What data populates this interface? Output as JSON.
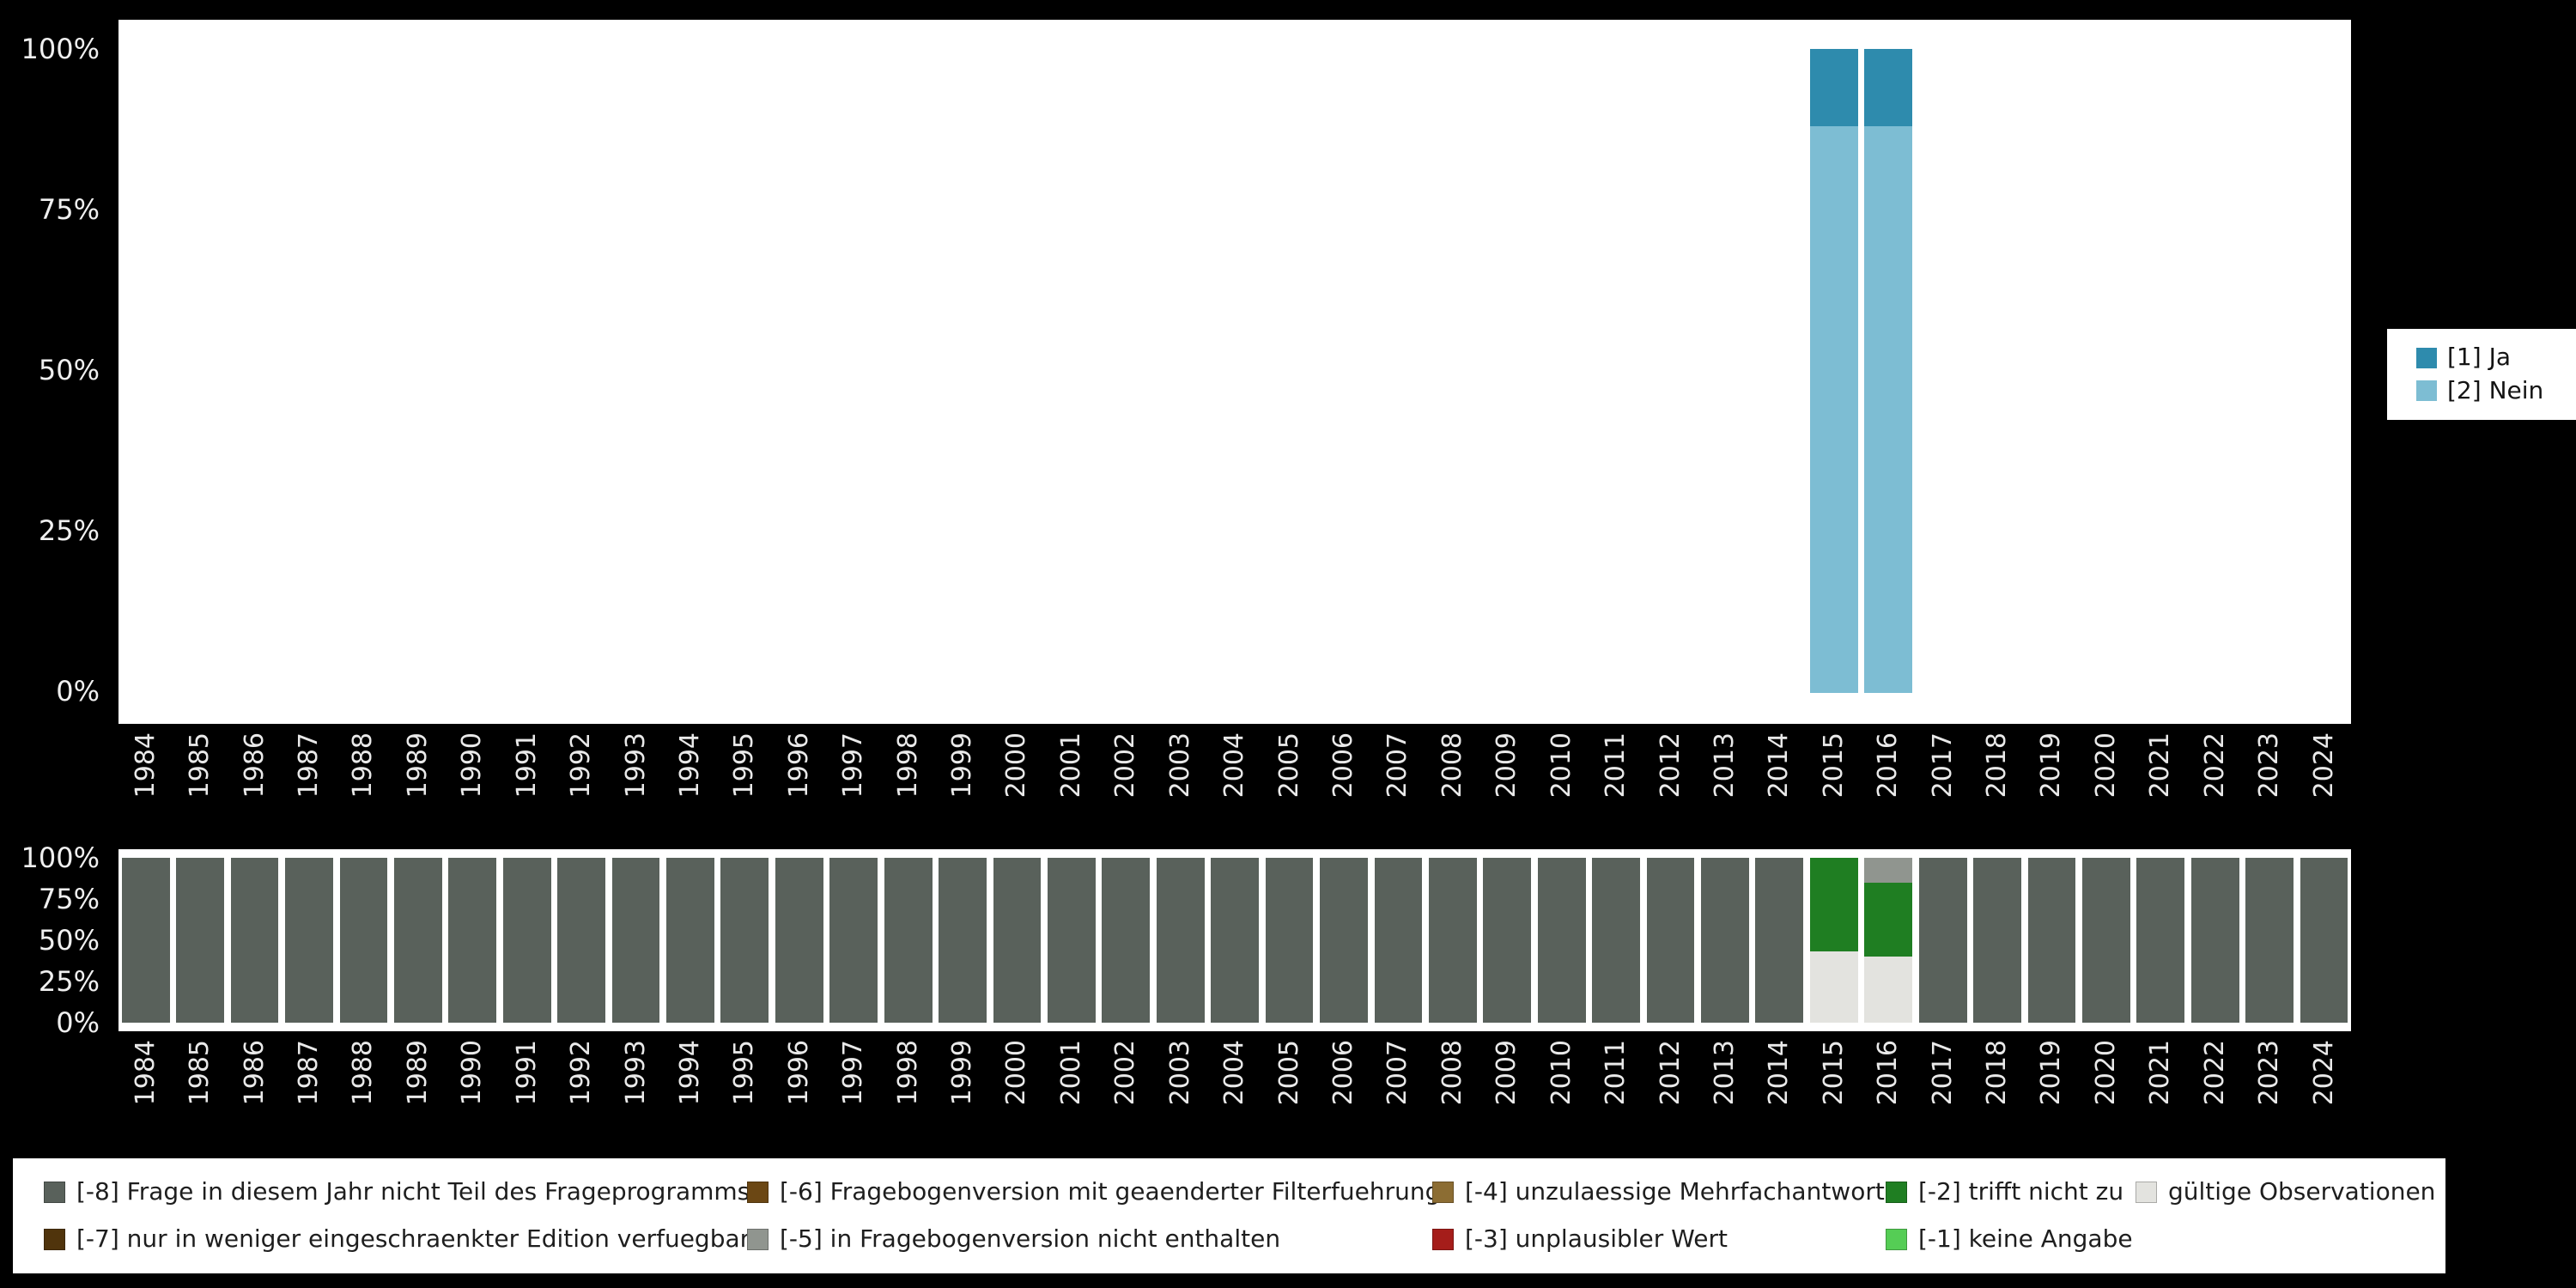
{
  "page": {
    "background_color": "#000000",
    "plot_background_color": "#ffffff",
    "axis_text_color": "#e9e9e9"
  },
  "chart_data": [
    {
      "id": "response-distribution",
      "type": "bar",
      "stacked": true,
      "unit": "percent",
      "title": "",
      "xlabel": "",
      "ylabel": "",
      "ylim": [
        0,
        100
      ],
      "grid": false,
      "legend_position": "right",
      "yticks": [
        "100%",
        "75%",
        "50%",
        "25%",
        "0%"
      ],
      "categories": [
        "1984",
        "1985",
        "1986",
        "1987",
        "1988",
        "1989",
        "1990",
        "1991",
        "1992",
        "1993",
        "1994",
        "1995",
        "1996",
        "1997",
        "1998",
        "1999",
        "2000",
        "2001",
        "2002",
        "2003",
        "2004",
        "2005",
        "2006",
        "2007",
        "2008",
        "2009",
        "2010",
        "2011",
        "2012",
        "2013",
        "2014",
        "2015",
        "2016",
        "2017",
        "2018",
        "2019",
        "2020",
        "2021",
        "2022",
        "2023",
        "2024"
      ],
      "series": [
        {
          "name": "[1] Ja",
          "color": "#2e8bad"
        },
        {
          "name": "[2] Nein",
          "color": "#7dbdd3"
        }
      ],
      "values": {
        "2015": [
          12,
          88
        ],
        "2016": [
          12,
          88
        ]
      }
    },
    {
      "id": "missing-codes",
      "type": "bar",
      "stacked": true,
      "unit": "percent",
      "title": "",
      "xlabel": "",
      "ylabel": "",
      "ylim": [
        0,
        100
      ],
      "grid": false,
      "legend_position": "bottom",
      "yticks": [
        "100%",
        "75%",
        "50%",
        "25%",
        "0%"
      ],
      "categories": [
        "1984",
        "1985",
        "1986",
        "1987",
        "1988",
        "1989",
        "1990",
        "1991",
        "1992",
        "1993",
        "1994",
        "1995",
        "1996",
        "1997",
        "1998",
        "1999",
        "2000",
        "2001",
        "2002",
        "2003",
        "2004",
        "2005",
        "2006",
        "2007",
        "2008",
        "2009",
        "2010",
        "2011",
        "2012",
        "2013",
        "2014",
        "2015",
        "2016",
        "2017",
        "2018",
        "2019",
        "2020",
        "2021",
        "2022",
        "2023",
        "2024"
      ],
      "series": [
        {
          "name": "[-8] Frage in diesem Jahr nicht Teil des Frageprogramms",
          "color": "#59615b"
        },
        {
          "name": "[-7] nur in weniger eingeschraenkter Edition verfuegbar",
          "color": "#50340c"
        },
        {
          "name": "[-6] Fragebogenversion mit geaenderter Filterfuehrung",
          "color": "#6b4714"
        },
        {
          "name": "[-5] in Fragebogenversion nicht enthalten",
          "color": "#90958f"
        },
        {
          "name": "[-4] unzulaessige Mehrfachantwort",
          "color": "#8c6d33"
        },
        {
          "name": "[-3] unplausibler Wert",
          "color": "#a51d1a"
        },
        {
          "name": "[-2] trifft nicht zu",
          "color": "#1f7e22"
        },
        {
          "name": "[-1] keine Angabe",
          "color": "#55cd55"
        },
        {
          "name": "gültige Observationen",
          "color": "#e3e3df"
        }
      ],
      "default_values": [
        100,
        0,
        0,
        0,
        0,
        0,
        0,
        0,
        0
      ],
      "values": {
        "2015": [
          0,
          0,
          0,
          0,
          0,
          0,
          57,
          0,
          43
        ],
        "2016": [
          0,
          0,
          0,
          15,
          0,
          0,
          45,
          0,
          40
        ]
      }
    }
  ]
}
